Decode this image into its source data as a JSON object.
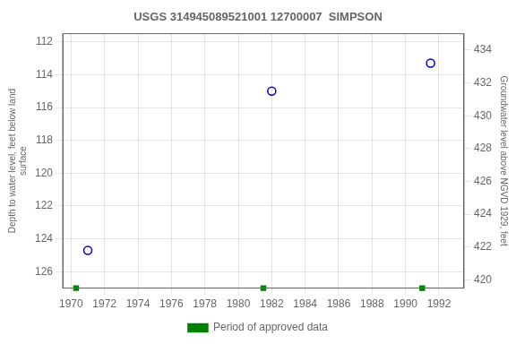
{
  "chart_data": {
    "type": "scatter",
    "title": "USGS 314945089521001 12700007  SIMPSON",
    "ylabel": "Depth to water level, feet below land\nsurface",
    "y2label": "Groundwater level above NGVD 1929, feet",
    "series": [
      {
        "x": [
          1971.0,
          1982.0,
          1991.5
        ],
        "values": [
          124.7,
          115.0,
          113.3
        ],
        "color": "#0000cc",
        "marker": "circle"
      },
      {
        "name": "Period of approved data",
        "x": [
          1970.3,
          1981.5,
          1991.0
        ],
        "values": [
          127.0,
          127.0,
          127.0
        ],
        "color": "#008000",
        "marker": "square"
      }
    ],
    "xlim": [
      1969.5,
      1993.5
    ],
    "xticks": [
      1970,
      1972,
      1974,
      1976,
      1978,
      1980,
      1982,
      1984,
      1986,
      1988,
      1990,
      1992
    ],
    "ylim": [
      127.0,
      111.5
    ],
    "yticks": [
      112,
      114,
      116,
      118,
      120,
      122,
      124,
      126
    ],
    "y2lim": [
      419.5,
      435.0
    ],
    "y2ticks": [
      420,
      422,
      424,
      426,
      428,
      430,
      432,
      434
    ],
    "grid": true,
    "legend": "bottom"
  }
}
